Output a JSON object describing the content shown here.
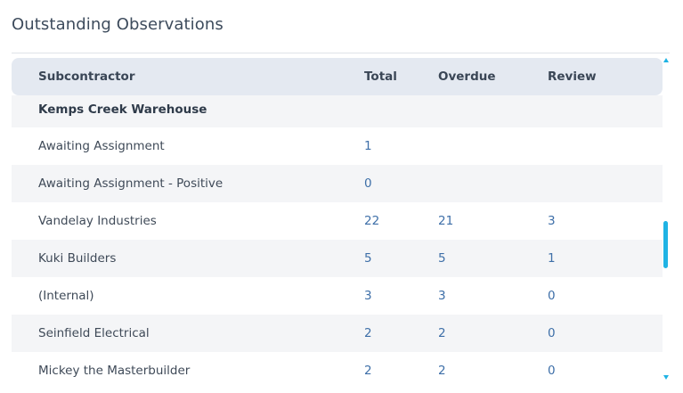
{
  "panel": {
    "title": "Outstanding Observations"
  },
  "table": {
    "columns": {
      "subcontractor": "Subcontractor",
      "total": "Total",
      "overdue": "Overdue",
      "review": "Review"
    },
    "group": {
      "name": "Kemps Creek Warehouse"
    },
    "rows": [
      {
        "name": "Awaiting Assignment",
        "total": "1",
        "overdue": "",
        "review": ""
      },
      {
        "name": "Awaiting Assignment - Positive",
        "total": "0",
        "overdue": "",
        "review": ""
      },
      {
        "name": "Vandelay Industries",
        "total": "22",
        "overdue": "21",
        "review": "3"
      },
      {
        "name": "Kuki Builders",
        "total": "5",
        "overdue": "5",
        "review": "1"
      },
      {
        "name": "(Internal)",
        "total": "3",
        "overdue": "3",
        "review": "0"
      },
      {
        "name": "Seinfield Electrical",
        "total": "2",
        "overdue": "2",
        "review": "0"
      },
      {
        "name": "Mickey the Masterbuilder",
        "total": "2",
        "overdue": "2",
        "review": "0"
      }
    ]
  },
  "colors": {
    "accent_scroll": "#1fb3e4",
    "header_bg": "#e4e9f1",
    "number_text": "#3e6fa8",
    "alt_row_bg": "#f4f5f7"
  },
  "icons": {
    "scroll_up": "scroll-up-arrow-icon",
    "scroll_down": "scroll-down-arrow-icon"
  }
}
